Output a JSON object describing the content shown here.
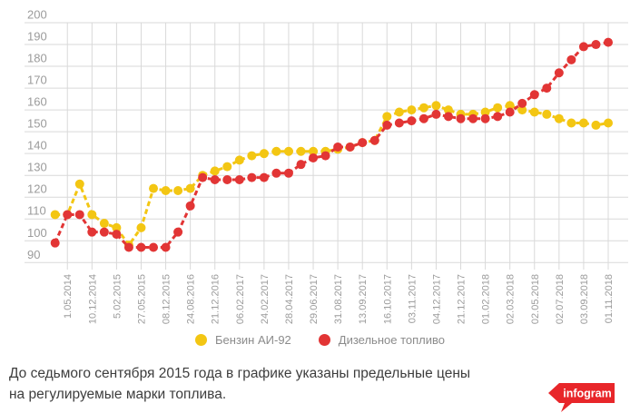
{
  "chart_data": {
    "type": "line",
    "title": "",
    "line_style": "dashed",
    "marker": "circle",
    "grid": true,
    "legend_position": "bottom",
    "x_label_rotation": -90,
    "y_axis": {
      "min": 90,
      "max": 200,
      "step": 10,
      "ticks": [
        200,
        190,
        180,
        170,
        160,
        150,
        140,
        130,
        120,
        110,
        100,
        90
      ]
    },
    "x_tick_labels": [
      "1.05.2014",
      "10.12.2014",
      "5.02.2015",
      "27.05.2015",
      "08.12.2015",
      "24.08.2016",
      "21.12.2016",
      "06.02.2017",
      "24.02.2017",
      "28.04.2017",
      "29.06.2017",
      "31.08.2017",
      "13.09.2017",
      "16.10.2017",
      "03.11.2017",
      "04.12.2017",
      "21.12.2017",
      "01.02.2018",
      "02.03.2018",
      "02.05.2018",
      "02.07.2018",
      "03.09.2018",
      "01.11.2018"
    ],
    "label_start_index": 1,
    "label_every": 2,
    "n_points": 46,
    "series": [
      {
        "name": "Бензин АИ-92",
        "color": "#f3c613",
        "values": [
          112,
          112,
          126,
          112,
          108,
          106,
          98,
          106,
          124,
          123,
          123,
          124,
          130,
          132,
          134,
          137,
          139,
          140,
          141,
          141,
          141,
          141,
          141,
          142,
          143,
          145,
          146,
          157,
          159,
          160,
          161,
          162,
          160,
          158,
          158,
          159,
          161,
          162,
          160,
          159,
          158,
          156,
          154,
          154,
          153,
          154
        ]
      },
      {
        "name": "Дизельное топливо",
        "color": "#e23535",
        "values": [
          99,
          112,
          112,
          104,
          104,
          103,
          97,
          97,
          97,
          97,
          104,
          116,
          129,
          128,
          128,
          128,
          129,
          129,
          131,
          131,
          135,
          138,
          139,
          143,
          143,
          145,
          146,
          153,
          154,
          155,
          156,
          158,
          157,
          156,
          156,
          156,
          157,
          159,
          163,
          167,
          170,
          177,
          183,
          189,
          190,
          191
        ]
      }
    ]
  },
  "grid_color": "#d9d9d9",
  "axis_label_color": "#9b9b9b",
  "caption": {
    "line1": "До седьмого сентября 2015 года в графике указаны предельные цены",
    "line2": "на регулируемые марки топлива."
  },
  "logo": {
    "text": "infogram",
    "color": "#e8262a"
  }
}
